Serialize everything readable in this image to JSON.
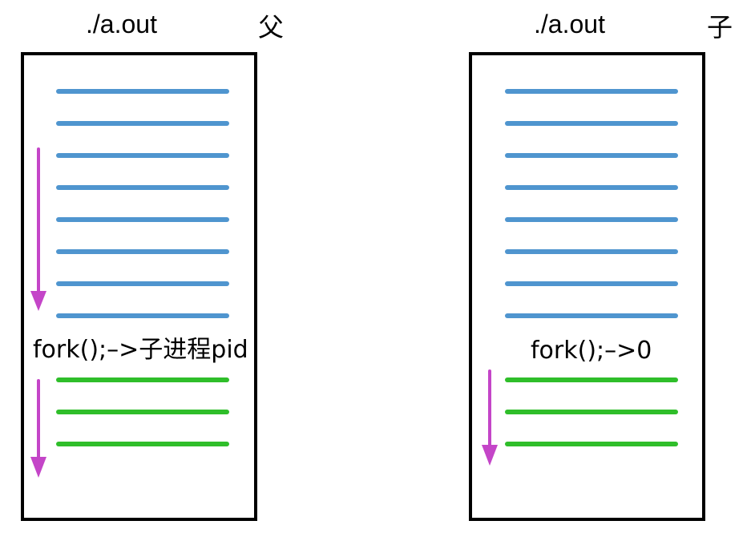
{
  "colors": {
    "code_line": "#4f95cf",
    "after_fork_line": "#2fbe2a",
    "exec_arrow": "#c445c8",
    "border": "#000000"
  },
  "parent": {
    "program": "./a.out",
    "role": "父",
    "fork_call": "fork();–>子进程pid"
  },
  "child": {
    "program": "./a.out",
    "role": "子",
    "fork_call": "fork();–>0"
  }
}
